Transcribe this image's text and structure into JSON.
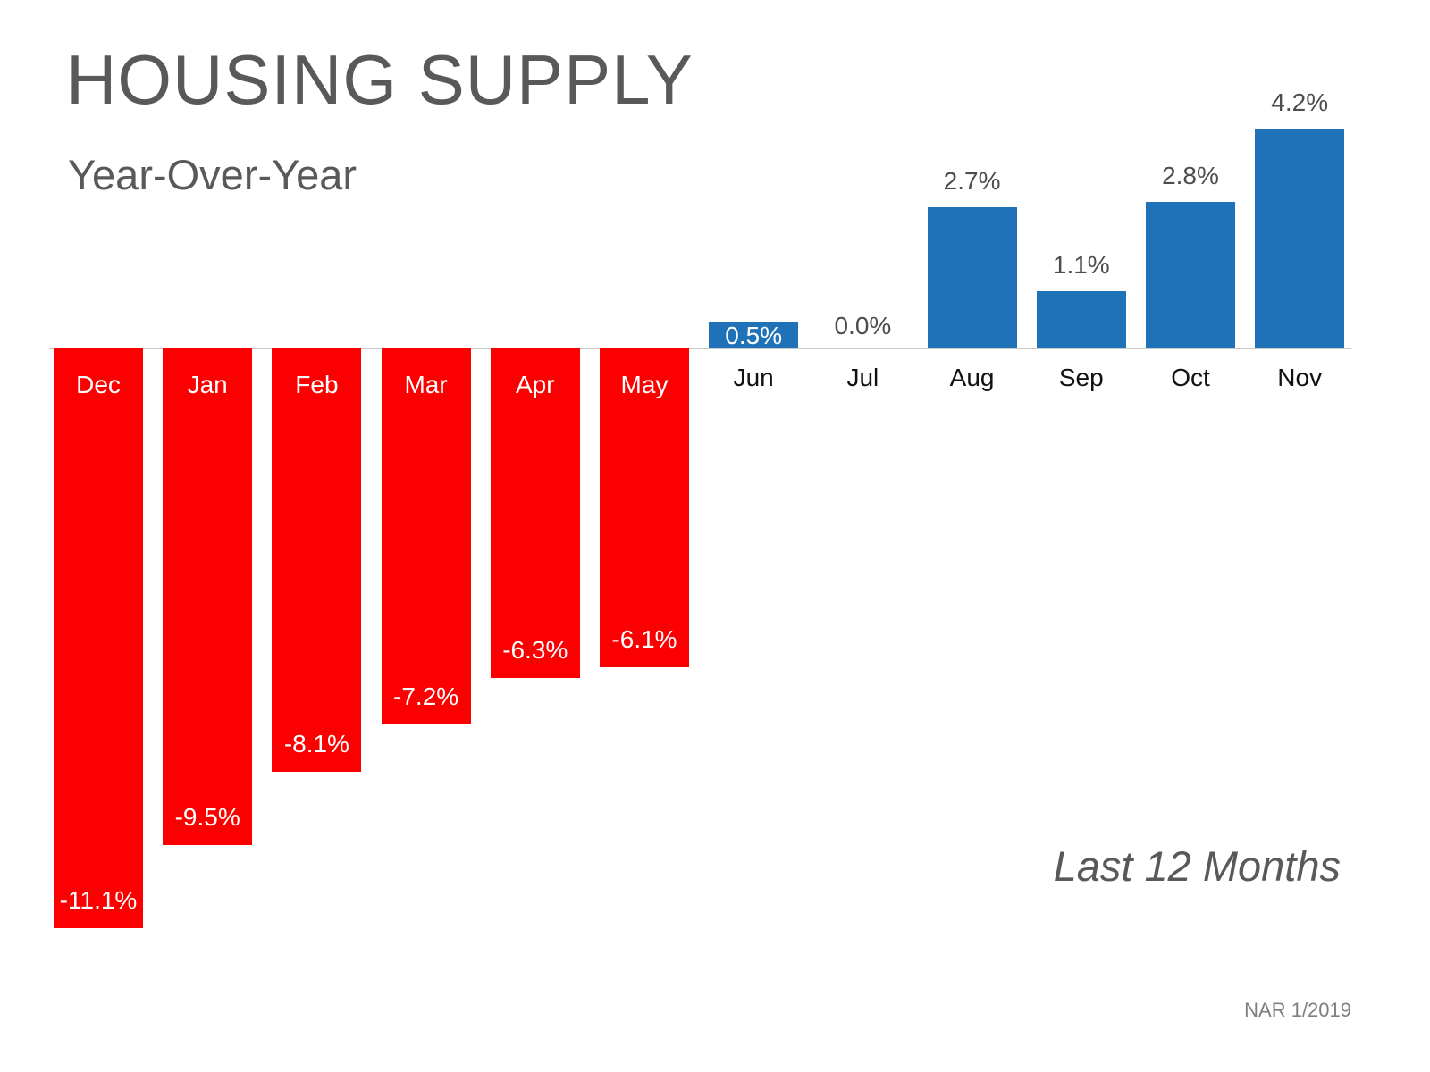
{
  "title": "HOUSING SUPPLY",
  "subtitle": "Year-Over-Year",
  "annotation": "Last 12 Months",
  "source": "NAR 1/2019",
  "colors": {
    "positive_bar": "#1F72B8",
    "negative_bar": "#FA0000",
    "heading_text": "#595959",
    "value_label_text": "#4D4D4D",
    "month_label_text": "#111111",
    "white_label_text": "#FFFFFF",
    "axis_line": "#C9C9C9"
  },
  "chart_data": {
    "type": "bar",
    "title": "Housing Supply Year-Over-Year, Last 12 Months",
    "categories": [
      "Dec",
      "Jan",
      "Feb",
      "Mar",
      "Apr",
      "May",
      "Jun",
      "Jul",
      "Aug",
      "Sep",
      "Oct",
      "Nov"
    ],
    "values": [
      -11.1,
      -9.5,
      -8.1,
      -7.2,
      -6.3,
      -6.1,
      0.5,
      0.0,
      2.7,
      1.1,
      2.8,
      4.2
    ],
    "value_labels": [
      "-11.1%",
      "-9.5%",
      "-8.1%",
      "-7.2%",
      "-6.3%",
      "-6.1%",
      "0.5%",
      "0.0%",
      "2.7%",
      "1.1%",
      "2.8%",
      "4.2%"
    ],
    "xlabel": "",
    "ylabel": "",
    "ylim": [
      -11.5,
      4.5
    ],
    "grid": false,
    "legend": false,
    "bar_color_rule": "negative values red with labels inside bar, positive values blue with labels above bar"
  }
}
